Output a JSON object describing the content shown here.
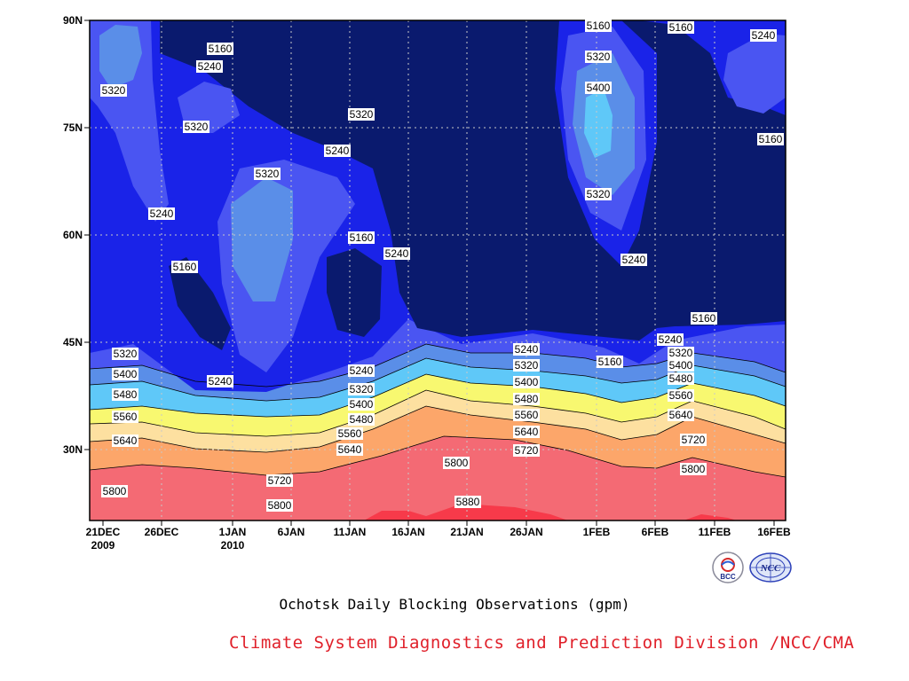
{
  "chart_data": {
    "type": "contour",
    "caption": "Ochotsk Daily Blocking Observations (gpm)",
    "credit": "Climate System Diagnostics and Prediction Division /NCC/CMA",
    "y_ticks": [
      "90N",
      "75N",
      "60N",
      "45N",
      "30N"
    ],
    "y_range": [
      20,
      90
    ],
    "x_ticks": [
      {
        "label": "21DEC",
        "sub": "2009"
      },
      {
        "label": "26DEC",
        "sub": ""
      },
      {
        "label": "1JAN",
        "sub": "2010"
      },
      {
        "label": "6JAN",
        "sub": ""
      },
      {
        "label": "11JAN",
        "sub": ""
      },
      {
        "label": "16JAN",
        "sub": ""
      },
      {
        "label": "21JAN",
        "sub": ""
      },
      {
        "label": "26JAN",
        "sub": ""
      },
      {
        "label": "1FEB",
        "sub": ""
      },
      {
        "label": "6FEB",
        "sub": ""
      },
      {
        "label": "11FEB",
        "sub": ""
      },
      {
        "label": "16FEB",
        "sub": ""
      }
    ],
    "grid": true,
    "contour_levels": [
      5160,
      5240,
      5320,
      5400,
      5480,
      5560,
      5640,
      5720,
      5800,
      5880
    ],
    "colors": {
      "below_5160": "#0a1a6e",
      "5160_5240": "#1a23e8",
      "5240_5320": "#4a55f2",
      "5320_5400": "#5a8ee8",
      "5400_5480": "#5fc8f8",
      "5480_5560": "#7ef0f0",
      "5560_5640": "#f8f870",
      "5640_5720": "#fde0a0",
      "5720_5800": "#fca66a",
      "5800_5880": "#f7755a",
      "above_5880": "#f73a4a",
      "band_5880_5960": "#f46a74"
    },
    "labels": [
      "5160",
      "5240",
      "5320",
      "5320",
      "5320",
      "5240",
      "5160",
      "5240",
      "5320",
      "5240",
      "5160",
      "5240",
      "5160",
      "5160",
      "5240",
      "5320",
      "5400",
      "5320",
      "5240",
      "5160",
      "5160",
      "5240",
      "5160",
      "5240",
      "5320",
      "5400",
      "5480",
      "5560",
      "5640",
      "5720",
      "5800",
      "5880",
      "5320",
      "5400",
      "5480",
      "5560",
      "5640",
      "5800",
      "5720",
      "5800",
      "5240",
      "5320",
      "5400",
      "5480",
      "5560",
      "5640",
      "5720",
      "5800",
      "5240",
      "5320",
      "5400",
      "5480",
      "5560",
      "5640",
      "5720",
      "5800"
    ]
  },
  "logos": {
    "bcc": "BCC",
    "ncc": "NCC"
  }
}
